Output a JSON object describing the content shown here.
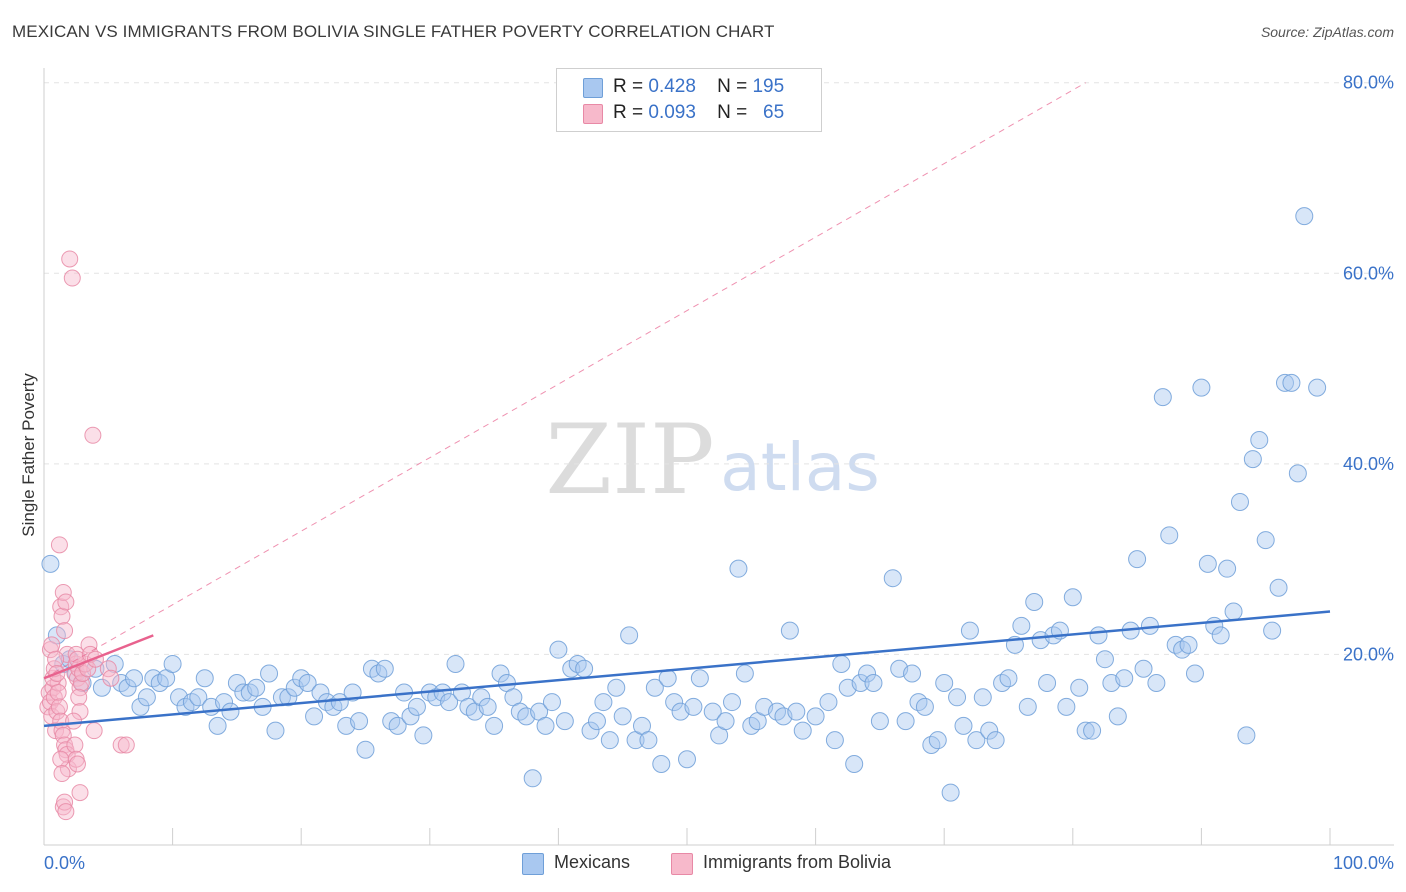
{
  "title": "MEXICAN VS IMMIGRANTS FROM BOLIVIA SINGLE FATHER POVERTY CORRELATION CHART",
  "source": "Source: ZipAtlas.com",
  "watermark": {
    "zip": "ZIP",
    "atlas": "atlas"
  },
  "legend_top": {
    "rows": [
      {
        "r_label": "R =",
        "r_value": "0.428",
        "n_label": "N =",
        "n_value": "195",
        "color": "#a9c8f0",
        "border": "#6f9fd8"
      },
      {
        "r_label": "R =",
        "r_value": "0.093",
        "n_label": "N =",
        "n_value": "65",
        "color": "#f7b9cb",
        "border": "#e889a6"
      }
    ]
  },
  "legend_bottom": [
    {
      "label": "Mexicans",
      "color": "#a9c8f0",
      "border": "#6f9fd8"
    },
    {
      "label": "Immigrants from Bolivia",
      "color": "#f7b9cb",
      "border": "#e889a6"
    }
  ],
  "chart_data": {
    "type": "scatter",
    "title": "MEXICAN VS IMMIGRANTS FROM BOLIVIA SINGLE FATHER POVERTY CORRELATION CHART",
    "xlabel": "",
    "ylabel": "Single Father Poverty",
    "xlim": [
      0,
      100
    ],
    "ylim": [
      0,
      80
    ],
    "x_tick_labels": [
      "0.0%",
      "100.0%"
    ],
    "y_tick_labels": [
      {
        "value": 20,
        "label": "20.0%"
      },
      {
        "value": 40,
        "label": "40.0%"
      },
      {
        "value": 60,
        "label": "60.0%"
      },
      {
        "value": 80,
        "label": "80.0%"
      }
    ],
    "grid": true,
    "colors": {
      "mexicans": "#3a72c8",
      "bolivia": "#e8628e",
      "axis_text": "#3a72c8"
    },
    "series": [
      {
        "name": "Mexicans",
        "color": "#a9c8f0",
        "stroke": "#6f9fd8",
        "trend": {
          "x": [
            0,
            100
          ],
          "y": [
            12.5,
            24.5
          ]
        },
        "points": [
          [
            0.5,
            29.5
          ],
          [
            1,
            22
          ],
          [
            1.5,
            19
          ],
          [
            2,
            19.5
          ],
          [
            2.5,
            18
          ],
          [
            3,
            17
          ],
          [
            4,
            18.5
          ],
          [
            4.5,
            16.5
          ],
          [
            5.5,
            19
          ],
          [
            6,
            17
          ],
          [
            6.5,
            16.5
          ],
          [
            7,
            17.5
          ],
          [
            7.5,
            14.5
          ],
          [
            8,
            15.5
          ],
          [
            8.5,
            17.5
          ],
          [
            9,
            17
          ],
          [
            9.5,
            17.5
          ],
          [
            10,
            19
          ],
          [
            10.5,
            15.5
          ],
          [
            11,
            14.5
          ],
          [
            11.5,
            15
          ],
          [
            12,
            15.5
          ],
          [
            12.5,
            17.5
          ],
          [
            13,
            14.5
          ],
          [
            13.5,
            12.5
          ],
          [
            14,
            15
          ],
          [
            14.5,
            14
          ],
          [
            15,
            17
          ],
          [
            15.5,
            16
          ],
          [
            16,
            16
          ],
          [
            16.5,
            16.5
          ],
          [
            17,
            14.5
          ],
          [
            17.5,
            18
          ],
          [
            18,
            12
          ],
          [
            18.5,
            15.5
          ],
          [
            19,
            15.5
          ],
          [
            19.5,
            16.5
          ],
          [
            20,
            17.5
          ],
          [
            20.5,
            17
          ],
          [
            21,
            13.5
          ],
          [
            21.5,
            16
          ],
          [
            22,
            15
          ],
          [
            22.5,
            14.5
          ],
          [
            23,
            15
          ],
          [
            23.5,
            12.5
          ],
          [
            24,
            16
          ],
          [
            24.5,
            13
          ],
          [
            25,
            10
          ],
          [
            25.5,
            18.5
          ],
          [
            26,
            18
          ],
          [
            26.5,
            18.5
          ],
          [
            27,
            13
          ],
          [
            27.5,
            12.5
          ],
          [
            28,
            16
          ],
          [
            28.5,
            13.5
          ],
          [
            29,
            14.5
          ],
          [
            29.5,
            11.5
          ],
          [
            30,
            16
          ],
          [
            30.5,
            15.5
          ],
          [
            31,
            16
          ],
          [
            31.5,
            15
          ],
          [
            32,
            19
          ],
          [
            32.5,
            16
          ],
          [
            33,
            14.5
          ],
          [
            33.5,
            14
          ],
          [
            34,
            15.5
          ],
          [
            34.5,
            14.5
          ],
          [
            35,
            12.5
          ],
          [
            35.5,
            18
          ],
          [
            36,
            17
          ],
          [
            36.5,
            15.5
          ],
          [
            37,
            14
          ],
          [
            37.5,
            13.5
          ],
          [
            38,
            7
          ],
          [
            38.5,
            14
          ],
          [
            39,
            12.5
          ],
          [
            39.5,
            15
          ],
          [
            40,
            20.5
          ],
          [
            40.5,
            13
          ],
          [
            41,
            18.5
          ],
          [
            41.5,
            19
          ],
          [
            42,
            18.5
          ],
          [
            42.5,
            12
          ],
          [
            43,
            13
          ],
          [
            43.5,
            15
          ],
          [
            44,
            11
          ],
          [
            44.5,
            16.5
          ],
          [
            45,
            13.5
          ],
          [
            45.5,
            22
          ],
          [
            46,
            11
          ],
          [
            46.5,
            12.5
          ],
          [
            47,
            11
          ],
          [
            47.5,
            16.5
          ],
          [
            48,
            8.5
          ],
          [
            48.5,
            17.5
          ],
          [
            49,
            15
          ],
          [
            49.5,
            14
          ],
          [
            50,
            9
          ],
          [
            50.5,
            14.5
          ],
          [
            51,
            17.5
          ],
          [
            52,
            14
          ],
          [
            52.5,
            11.5
          ],
          [
            53,
            13
          ],
          [
            53.5,
            15
          ],
          [
            54,
            29
          ],
          [
            54.5,
            18
          ],
          [
            55,
            12.5
          ],
          [
            55.5,
            13
          ],
          [
            56,
            14.5
          ],
          [
            57,
            14
          ],
          [
            57.5,
            13.5
          ],
          [
            58,
            22.5
          ],
          [
            58.5,
            14
          ],
          [
            59,
            12
          ],
          [
            60,
            13.5
          ],
          [
            61,
            15
          ],
          [
            61.5,
            11
          ],
          [
            62,
            19
          ],
          [
            62.5,
            16.5
          ],
          [
            63,
            8.5
          ],
          [
            63.5,
            17
          ],
          [
            64,
            18
          ],
          [
            64.5,
            17
          ],
          [
            65,
            13
          ],
          [
            66,
            28
          ],
          [
            66.5,
            18.5
          ],
          [
            67,
            13
          ],
          [
            67.5,
            18
          ],
          [
            68,
            15
          ],
          [
            68.5,
            14.5
          ],
          [
            69,
            10.5
          ],
          [
            69.5,
            11
          ],
          [
            70,
            17
          ],
          [
            70.5,
            5.5
          ],
          [
            71,
            15.5
          ],
          [
            71.5,
            12.5
          ],
          [
            72,
            22.5
          ],
          [
            72.5,
            11
          ],
          [
            73,
            15.5
          ],
          [
            73.5,
            12
          ],
          [
            74,
            11
          ],
          [
            74.5,
            17
          ],
          [
            75,
            17.5
          ],
          [
            75.5,
            21
          ],
          [
            76,
            23
          ],
          [
            76.5,
            14.5
          ],
          [
            77,
            25.5
          ],
          [
            77.5,
            21.5
          ],
          [
            78,
            17
          ],
          [
            78.5,
            22
          ],
          [
            79,
            22.5
          ],
          [
            79.5,
            14.5
          ],
          [
            80,
            26
          ],
          [
            80.5,
            16.5
          ],
          [
            81,
            12
          ],
          [
            81.5,
            12
          ],
          [
            82,
            22
          ],
          [
            82.5,
            19.5
          ],
          [
            83,
            17
          ],
          [
            83.5,
            13.5
          ],
          [
            84,
            17.5
          ],
          [
            84.5,
            22.5
          ],
          [
            85,
            30
          ],
          [
            85.5,
            18.5
          ],
          [
            86,
            23
          ],
          [
            86.5,
            17
          ],
          [
            87,
            47
          ],
          [
            87.5,
            32.5
          ],
          [
            88,
            21
          ],
          [
            88.5,
            20.5
          ],
          [
            89,
            21
          ],
          [
            89.5,
            18
          ],
          [
            90,
            48
          ],
          [
            90.5,
            29.5
          ],
          [
            91,
            23
          ],
          [
            91.5,
            22
          ],
          [
            92,
            29
          ],
          [
            92.5,
            24.5
          ],
          [
            93,
            36
          ],
          [
            93.5,
            11.5
          ],
          [
            94,
            40.5
          ],
          [
            94.5,
            42.5
          ],
          [
            95,
            32
          ],
          [
            95.5,
            22.5
          ],
          [
            96,
            27
          ],
          [
            96.5,
            48.5
          ],
          [
            97,
            48.5
          ],
          [
            97.5,
            39
          ],
          [
            98,
            66
          ],
          [
            99,
            48
          ]
        ]
      },
      {
        "name": "Immigrants from Bolivia",
        "color": "#f7b9cb",
        "stroke": "#e889a6",
        "trend": {
          "x": [
            0,
            8.5
          ],
          "y": [
            17.5,
            22
          ]
        },
        "trend_extended": {
          "x": [
            0,
            81
          ],
          "y": [
            17.5,
            80
          ]
        },
        "points": [
          [
            0.3,
            14.5
          ],
          [
            0.4,
            16
          ],
          [
            0.5,
            15
          ],
          [
            0.6,
            13.5
          ],
          [
            0.7,
            16.5
          ],
          [
            0.8,
            15.5
          ],
          [
            0.9,
            12
          ],
          [
            1,
            14
          ],
          [
            1.1,
            17
          ],
          [
            1.2,
            31.5
          ],
          [
            1.3,
            25
          ],
          [
            1.4,
            24
          ],
          [
            1.5,
            26.5
          ],
          [
            1.6,
            22.5
          ],
          [
            1.7,
            25.5
          ],
          [
            1.8,
            20
          ],
          [
            0.5,
            20.5
          ],
          [
            0.6,
            21
          ],
          [
            0.7,
            17.5
          ],
          [
            0.8,
            18.5
          ],
          [
            0.9,
            19.5
          ],
          [
            1,
            18
          ],
          [
            1.1,
            16
          ],
          [
            1.2,
            14.5
          ],
          [
            1.3,
            13
          ],
          [
            1.4,
            12
          ],
          [
            1.5,
            11.5
          ],
          [
            1.6,
            10.5
          ],
          [
            1.7,
            10
          ],
          [
            1.8,
            9.5
          ],
          [
            1.9,
            8
          ],
          [
            1.3,
            9
          ],
          [
            1.4,
            7.5
          ],
          [
            1.5,
            4
          ],
          [
            1.6,
            4.5
          ],
          [
            1.7,
            3.5
          ],
          [
            2,
            61.5
          ],
          [
            2.2,
            59.5
          ],
          [
            2.4,
            18
          ],
          [
            2.5,
            19
          ],
          [
            2.6,
            17.5
          ],
          [
            2.7,
            18.5
          ],
          [
            2.8,
            16.5
          ],
          [
            2.9,
            17
          ],
          [
            3,
            18
          ],
          [
            3.2,
            19
          ],
          [
            3.4,
            18.5
          ],
          [
            2.5,
            20
          ],
          [
            2.6,
            19.5
          ],
          [
            2.7,
            15.5
          ],
          [
            2.8,
            14
          ],
          [
            2.3,
            13
          ],
          [
            2.4,
            10.5
          ],
          [
            2.5,
            9
          ],
          [
            2.6,
            8.5
          ],
          [
            2.8,
            5.5
          ],
          [
            3.5,
            21
          ],
          [
            3.6,
            20
          ],
          [
            3.8,
            43
          ],
          [
            3.9,
            12
          ],
          [
            4,
            19.5
          ],
          [
            5,
            18.5
          ],
          [
            5.2,
            17.5
          ],
          [
            6,
            10.5
          ],
          [
            6.4,
            10.5
          ]
        ]
      }
    ]
  }
}
